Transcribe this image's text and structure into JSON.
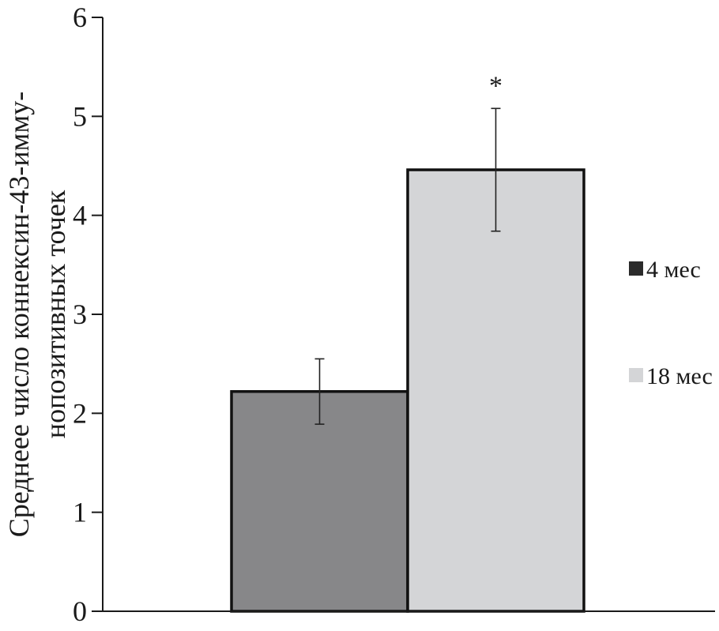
{
  "chart_data": {
    "type": "bar",
    "ylabel": [
      "Среднеее число коннексин-43-имму-",
      "нопозитивных точек"
    ],
    "ylim": [
      0,
      6
    ],
    "yticks": [
      "0",
      "1",
      "2",
      "3",
      "4",
      "5",
      "6"
    ],
    "grid": false,
    "legend_position": "right",
    "series": [
      {
        "name": "4 мес",
        "value": 2.22,
        "error_low": 1.89,
        "error_high": 2.55,
        "color": "#878789"
      },
      {
        "name": "18 мес",
        "value": 4.46,
        "error_low": 3.84,
        "error_high": 5.08,
        "color": "#d4d5d7",
        "annotation": "*"
      }
    ],
    "legend_swatch_colors": [
      "#2b2b2b",
      "#d4d5d7"
    ]
  }
}
